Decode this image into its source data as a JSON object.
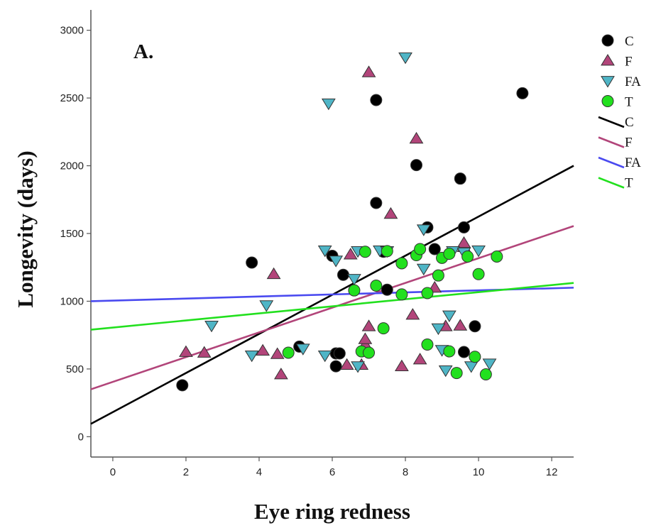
{
  "chart_data": {
    "type": "scatter",
    "panel_label": "A.",
    "xlabel": "Eye ring redness",
    "ylabel": "Longevity (days)",
    "xlim": [
      -0.6,
      12.6
    ],
    "ylim": [
      -150,
      3150
    ],
    "xticks": [
      0,
      2,
      4,
      6,
      8,
      10,
      12
    ],
    "yticks": [
      0,
      500,
      1000,
      1500,
      2000,
      2500,
      3000
    ],
    "grid": false,
    "legend_position": "right",
    "series": [
      {
        "name": "C",
        "marker": "circle",
        "color": "#000000",
        "points": [
          [
            1.9,
            380
          ],
          [
            3.8,
            1285
          ],
          [
            5.1,
            665
          ],
          [
            6.0,
            1335
          ],
          [
            6.1,
            520
          ],
          [
            6.1,
            615
          ],
          [
            6.2,
            615
          ],
          [
            6.3,
            1195
          ],
          [
            7.2,
            1725
          ],
          [
            7.2,
            2485
          ],
          [
            7.4,
            1365
          ],
          [
            7.5,
            1085
          ],
          [
            8.3,
            2005
          ],
          [
            8.6,
            1545
          ],
          [
            8.8,
            1385
          ],
          [
            9.5,
            1905
          ],
          [
            9.6,
            1545
          ],
          [
            9.6,
            625
          ],
          [
            9.9,
            815
          ],
          [
            11.2,
            2535
          ]
        ]
      },
      {
        "name": "F",
        "marker": "triangle-up",
        "color": "#b2457a",
        "points": [
          [
            2.0,
            625
          ],
          [
            2.5,
            620
          ],
          [
            4.1,
            635
          ],
          [
            4.4,
            1200
          ],
          [
            4.5,
            610
          ],
          [
            4.6,
            460
          ],
          [
            6.4,
            530
          ],
          [
            6.5,
            1345
          ],
          [
            6.8,
            530
          ],
          [
            6.9,
            680
          ],
          [
            6.9,
            720
          ],
          [
            7.0,
            815
          ],
          [
            7.0,
            2690
          ],
          [
            7.6,
            1645
          ],
          [
            7.9,
            520
          ],
          [
            8.2,
            900
          ],
          [
            8.3,
            2200
          ],
          [
            8.4,
            570
          ],
          [
            8.8,
            1100
          ],
          [
            9.1,
            815
          ],
          [
            9.5,
            820
          ],
          [
            9.6,
            1400
          ],
          [
            9.6,
            1430
          ]
        ]
      },
      {
        "name": "FA",
        "marker": "triangle-down",
        "color": "#4fb5c6",
        "points": [
          [
            2.7,
            820
          ],
          [
            3.8,
            600
          ],
          [
            4.2,
            970
          ],
          [
            5.2,
            650
          ],
          [
            5.8,
            1375
          ],
          [
            5.8,
            600
          ],
          [
            5.9,
            2460
          ],
          [
            6.1,
            1300
          ],
          [
            6.6,
            1165
          ],
          [
            6.7,
            1370
          ],
          [
            6.7,
            520
          ],
          [
            7.3,
            1375
          ],
          [
            7.5,
            1370
          ],
          [
            8.0,
            2800
          ],
          [
            8.5,
            1530
          ],
          [
            8.5,
            1240
          ],
          [
            8.9,
            800
          ],
          [
            9.0,
            640
          ],
          [
            9.1,
            490
          ],
          [
            9.2,
            895
          ],
          [
            9.3,
            1370
          ],
          [
            9.6,
            1360
          ],
          [
            9.8,
            520
          ],
          [
            10.0,
            1375
          ],
          [
            10.3,
            540
          ]
        ]
      },
      {
        "name": "T",
        "marker": "circle",
        "color": "#22e01e",
        "points": [
          [
            4.8,
            620
          ],
          [
            6.6,
            1080
          ],
          [
            6.8,
            630
          ],
          [
            6.9,
            1365
          ],
          [
            7.0,
            620
          ],
          [
            7.2,
            1115
          ],
          [
            7.4,
            800
          ],
          [
            7.5,
            1370
          ],
          [
            7.9,
            1050
          ],
          [
            7.9,
            1280
          ],
          [
            8.3,
            1340
          ],
          [
            8.4,
            1385
          ],
          [
            8.6,
            1060
          ],
          [
            8.6,
            680
          ],
          [
            8.9,
            1190
          ],
          [
            9.0,
            1320
          ],
          [
            9.2,
            630
          ],
          [
            9.2,
            1350
          ],
          [
            9.4,
            470
          ],
          [
            9.7,
            1330
          ],
          [
            9.9,
            590
          ],
          [
            10.0,
            1200
          ],
          [
            10.2,
            460
          ],
          [
            10.5,
            1330
          ]
        ]
      }
    ],
    "fit_lines": [
      {
        "name": "C",
        "color": "#000000",
        "x": [
          -0.6,
          12.6
        ],
        "y": [
          95,
          2000
        ]
      },
      {
        "name": "F",
        "color": "#b2457a",
        "x": [
          -0.6,
          12.6
        ],
        "y": [
          350,
          1555
        ]
      },
      {
        "name": "FA",
        "color": "#4a4af0",
        "x": [
          -0.6,
          12.6
        ],
        "y": [
          1000,
          1100
        ]
      },
      {
        "name": "T",
        "color": "#22e01e",
        "x": [
          -0.6,
          12.6
        ],
        "y": [
          790,
          1135
        ]
      }
    ]
  }
}
